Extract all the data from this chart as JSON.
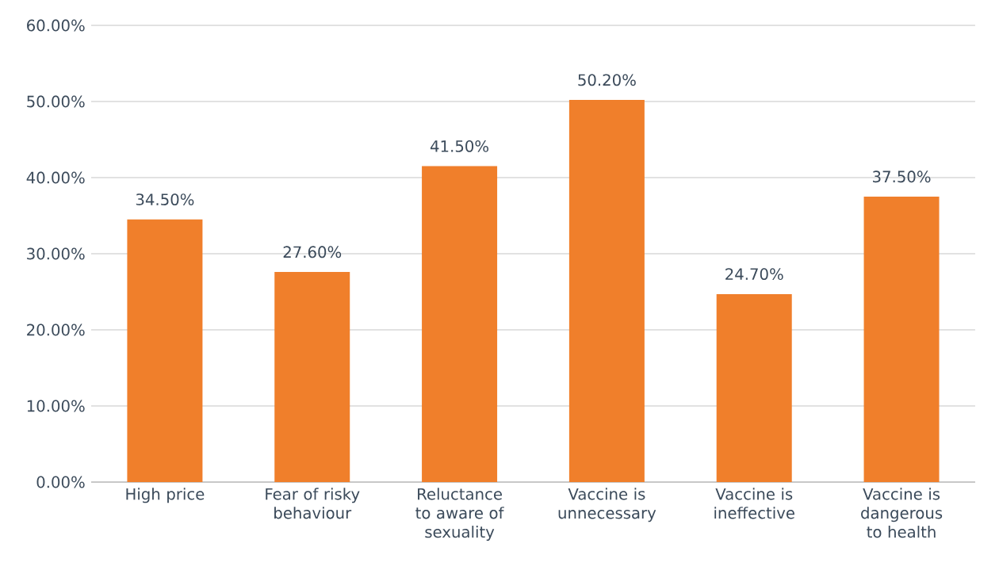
{
  "chart_data": {
    "type": "bar",
    "categories": [
      "High price",
      "Fear of risky behaviour",
      "Reluctance to aware of sexuality",
      "Vaccine is unnecessary",
      "Vaccine is ineffective",
      "Vaccine is dangerous to health"
    ],
    "values": [
      34.5,
      27.6,
      41.5,
      50.2,
      24.7,
      37.5
    ],
    "value_labels": [
      "34.50%",
      "27.60%",
      "41.50%",
      "50.20%",
      "24.70%",
      "37.50%"
    ],
    "color": "#f07f2b",
    "ylim": [
      0,
      60
    ],
    "yticks": [
      {
        "value": 0,
        "label": "0.00%"
      },
      {
        "value": 10,
        "label": "10.00%"
      },
      {
        "value": 20,
        "label": "20.00%"
      },
      {
        "value": 30,
        "label": "30.00%"
      },
      {
        "value": 40,
        "label": "40.00%"
      },
      {
        "value": 50,
        "label": "50.00%"
      },
      {
        "value": 60,
        "label": "60.00%"
      }
    ],
    "grid": "y"
  }
}
